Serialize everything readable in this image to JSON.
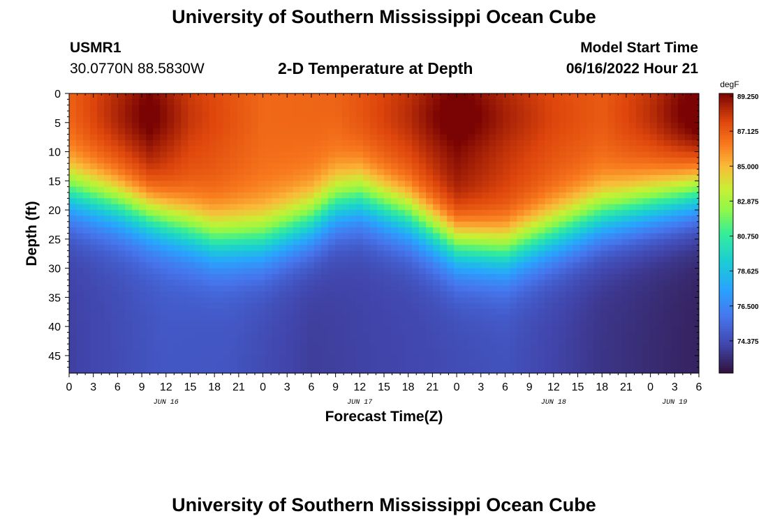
{
  "page": {
    "title": "University of Southern Mississippi Ocean Cube",
    "footer_title": "University of Southern Mississippi Ocean Cube"
  },
  "header": {
    "station": "USMR1",
    "location": "30.0770N  88.5830W",
    "subtitle": "2-D Temperature at Depth",
    "model_label": "Model Start Time",
    "model_time": "06/16/2022 Hour 21"
  },
  "chart_data": {
    "type": "heatmap",
    "title": "2-D Temperature at Depth",
    "xlabel": "Forecast Time(Z)",
    "ylabel": "Depth (ft)",
    "x_hours_range": [
      0,
      78
    ],
    "x_tick_labels": [
      "0",
      "3",
      "6",
      "9",
      "12",
      "15",
      "18",
      "21",
      "0",
      "3",
      "6",
      "9",
      "12",
      "15",
      "18",
      "21",
      "0",
      "3",
      "6",
      "9",
      "12",
      "15",
      "18",
      "21",
      "0",
      "3",
      "6"
    ],
    "date_labels": [
      {
        "text": "JUN 16",
        "hour": 12
      },
      {
        "text": "JUN 17",
        "hour": 36
      },
      {
        "text": "JUN 18",
        "hour": 60
      },
      {
        "text": "JUN 19",
        "hour": 75
      }
    ],
    "ylim": [
      0,
      48
    ],
    "y_ticks": [
      0,
      5,
      10,
      15,
      20,
      25,
      30,
      35,
      40,
      45
    ],
    "colorbar": {
      "unit": "degF",
      "min": 72.25,
      "max": 89.25,
      "tick_labels": [
        "89.250",
        "87.125",
        "85.000",
        "82.875",
        "80.750",
        "78.625",
        "76.500",
        "74.375"
      ]
    },
    "thermocline_depth_ft": [
      {
        "hour": 0,
        "depth": 17
      },
      {
        "hour": 6,
        "depth": 19
      },
      {
        "hour": 12,
        "depth": 22
      },
      {
        "hour": 18,
        "depth": 25
      },
      {
        "hour": 24,
        "depth": 25
      },
      {
        "hour": 30,
        "depth": 22
      },
      {
        "hour": 33,
        "depth": 19
      },
      {
        "hour": 36,
        "depth": 18
      },
      {
        "hour": 42,
        "depth": 21
      },
      {
        "hour": 48,
        "depth": 26
      },
      {
        "hour": 54,
        "depth": 27
      },
      {
        "hour": 60,
        "depth": 24
      },
      {
        "hour": 66,
        "depth": 21
      },
      {
        "hour": 72,
        "depth": 19
      },
      {
        "hour": 78,
        "depth": 17
      }
    ],
    "surface_max_degF": [
      {
        "hour": 0,
        "temp": 86.8
      },
      {
        "hour": 6,
        "temp": 88.0
      },
      {
        "hour": 10,
        "temp": 88.8
      },
      {
        "hour": 15,
        "temp": 87.6
      },
      {
        "hour": 24,
        "temp": 86.6
      },
      {
        "hour": 33,
        "temp": 86.7
      },
      {
        "hour": 42,
        "temp": 87.8
      },
      {
        "hour": 48,
        "temp": 89.0
      },
      {
        "hour": 54,
        "temp": 88.0
      },
      {
        "hour": 60,
        "temp": 87.3
      },
      {
        "hour": 66,
        "temp": 86.9
      },
      {
        "hour": 72,
        "temp": 87.8
      },
      {
        "hour": 78,
        "temp": 89.2
      }
    ],
    "bottom_temp_degF": [
      {
        "hour": 0,
        "temp": 73.8
      },
      {
        "hour": 12,
        "temp": 74.6
      },
      {
        "hour": 20,
        "temp": 74.5
      },
      {
        "hour": 30,
        "temp": 73.7
      },
      {
        "hour": 42,
        "temp": 74.0
      },
      {
        "hour": 54,
        "temp": 74.4
      },
      {
        "hour": 66,
        "temp": 73.4
      },
      {
        "hour": 78,
        "temp": 72.8
      }
    ]
  }
}
